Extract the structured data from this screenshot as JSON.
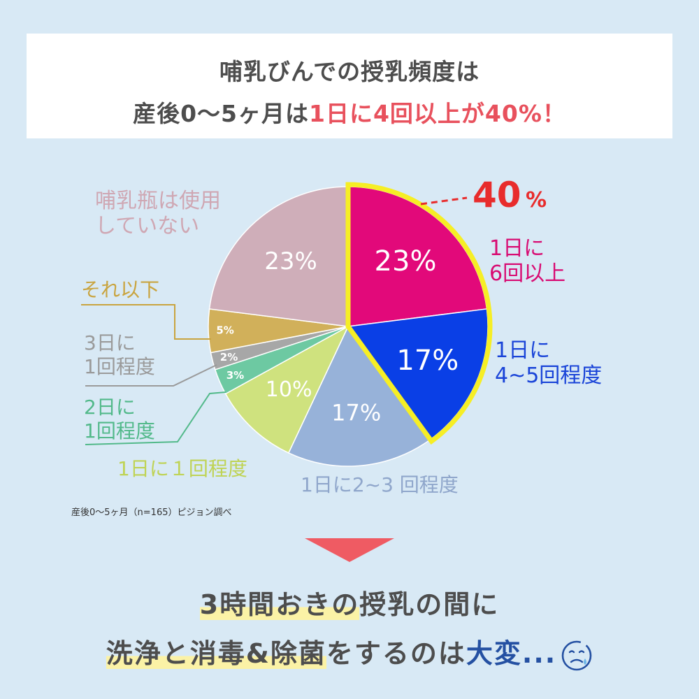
{
  "header": {
    "line1": "哺乳びんでの授乳頻度は",
    "line2_prefix": "産後0〜5ヶ月は",
    "line2_highlight": "1日に4回以上が40%！"
  },
  "chart_data": {
    "type": "pie",
    "slices": [
      {
        "label_lines": [
          "1日に",
          "6回以上"
        ],
        "value": 23,
        "value_label": "23%",
        "color": "#e2097a"
      },
      {
        "label_lines": [
          "1日に",
          "4~5回程度"
        ],
        "value": 17,
        "value_label": "17%",
        "color": "#0a3fe6"
      },
      {
        "label_lines": [
          "1日に2~3 回程度"
        ],
        "value": 17,
        "value_label": "17%",
        "color": "#97b2d9"
      },
      {
        "label_lines": [
          "1日に１回程度"
        ],
        "value": 10,
        "value_label": "10%",
        "color": "#cfe27e"
      },
      {
        "label_lines": [
          "2日に",
          "1回程度"
        ],
        "value": 3,
        "value_label": "3%",
        "color": "#6dc9a2"
      },
      {
        "label_lines": [
          "3日に",
          "1回程度"
        ],
        "value": 2,
        "value_label": "2%",
        "color": "#a7a7a7"
      },
      {
        "label_lines": [
          "それ以下"
        ],
        "value": 5,
        "value_label": "5%",
        "color": "#d1b05a"
      },
      {
        "label_lines": [
          "哺乳瓶は使用",
          "していない"
        ],
        "value": 23,
        "value_label": "23%",
        "color": "#cfaeb9"
      }
    ],
    "highlight": {
      "value": 40,
      "label": "40",
      "unit": "%",
      "color": "#e82c2c",
      "outline_color": "#f6ee25"
    }
  },
  "label_colors": [
    "#d80b72",
    "#1a44d8",
    "#8fa6cb",
    "#bfd354",
    "#52b98a",
    "#9a9a9a",
    "#c9a43f",
    "#cfa7b3"
  ],
  "source": "産後0〜5ヶ月（n=165）ピジョン調べ",
  "arrow_color": "#ef5b63",
  "bottom": {
    "line1_marked": "3時間おきの",
    "line1_rest": "授乳の間に",
    "line2_marked": "洗浄と消毒&除菌",
    "line2_rest": "をするのは",
    "line2_emph": "大変...",
    "icon": "sad-face-icon"
  }
}
